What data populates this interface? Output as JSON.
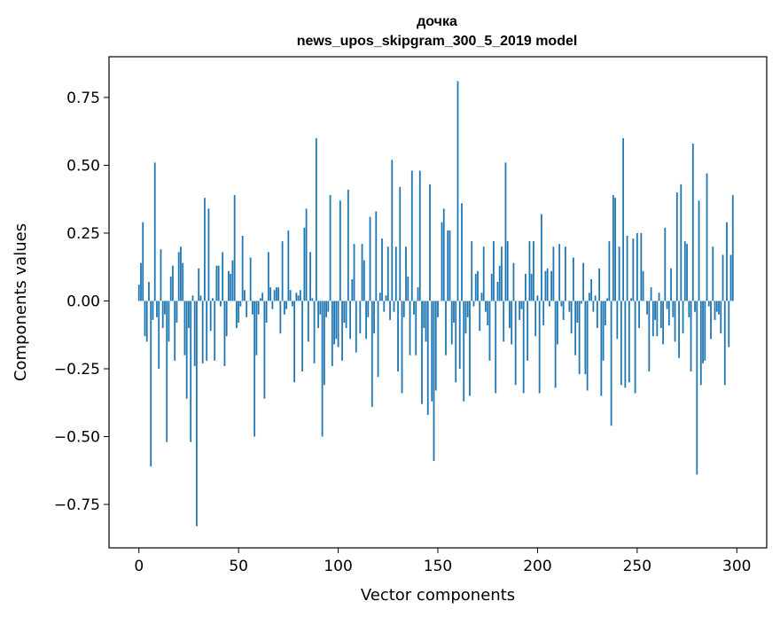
{
  "chart_data": {
    "type": "bar",
    "title": "дочка",
    "subtitle": "news_upos_skipgram_300_5_2019 model",
    "xlabel": "Vector components",
    "ylabel": "Components values",
    "xlim": [
      -15,
      315
    ],
    "ylim": [
      -0.91,
      0.9
    ],
    "xticks": [
      0,
      50,
      100,
      150,
      200,
      250,
      300
    ],
    "yticks": [
      -0.75,
      -0.5,
      -0.25,
      0.0,
      0.25,
      0.5,
      0.75
    ],
    "xtick_labels": [
      "0",
      "50",
      "100",
      "150",
      "200",
      "250",
      "300"
    ],
    "ytick_labels": [
      "−0.75",
      "−0.50",
      "−0.25",
      "0.00",
      "0.25",
      "0.50",
      "0.75"
    ],
    "grid": false,
    "bar_color": "#1f77b4",
    "values": [
      0.06,
      0.14,
      0.29,
      -0.13,
      -0.15,
      0.07,
      -0.61,
      -0.07,
      0.51,
      -0.06,
      -0.25,
      0.19,
      -0.1,
      -0.05,
      -0.52,
      -0.15,
      0.09,
      0.13,
      -0.22,
      -0.08,
      0.18,
      0.2,
      0.14,
      -0.2,
      -0.36,
      -0.1,
      -0.52,
      0.02,
      -0.24,
      -0.83,
      0.12,
      0.02,
      -0.23,
      0.38,
      -0.22,
      0.34,
      -0.11,
      0.01,
      -0.22,
      0.13,
      0.13,
      -0.02,
      0.18,
      -0.24,
      -0.13,
      0.11,
      0.1,
      0.15,
      0.39,
      -0.1,
      -0.08,
      -0.02,
      0.24,
      0.04,
      -0.06,
      0.0,
      0.16,
      -0.05,
      -0.5,
      -0.2,
      -0.05,
      0.01,
      0.03,
      -0.36,
      -0.08,
      0.18,
      0.05,
      -0.03,
      0.04,
      0.05,
      0.05,
      -0.12,
      0.22,
      -0.05,
      -0.03,
      0.26,
      0.04,
      -0.02,
      -0.3,
      0.03,
      0.02,
      0.04,
      -0.26,
      0.27,
      0.34,
      -0.15,
      0.18,
      0.01,
      -0.23,
      0.6,
      -0.1,
      -0.05,
      -0.5,
      -0.31,
      -0.06,
      -0.04,
      0.39,
      -0.24,
      -0.16,
      -0.14,
      -0.17,
      0.37,
      -0.22,
      -0.08,
      -0.1,
      0.41,
      -0.14,
      0.08,
      0.21,
      -0.19,
      0.0,
      -0.12,
      0.21,
      0.15,
      -0.14,
      -0.06,
      0.31,
      -0.39,
      -0.12,
      0.33,
      -0.28,
      0.03,
      0.23,
      -0.04,
      0.02,
      0.2,
      -0.07,
      0.52,
      -0.04,
      0.2,
      -0.26,
      0.42,
      -0.34,
      -0.06,
      0.2,
      0.09,
      -0.2,
      0.48,
      -0.05,
      -0.2,
      0.05,
      0.48,
      -0.38,
      -0.1,
      -0.15,
      -0.42,
      0.43,
      -0.37,
      -0.59,
      -0.33,
      -0.06,
      0.0,
      0.29,
      0.34,
      -0.2,
      0.26,
      0.26,
      -0.16,
      -0.08,
      -0.3,
      0.81,
      -0.25,
      0.36,
      -0.37,
      -0.12,
      -0.06,
      -0.35,
      0.22,
      -0.02,
      0.1,
      0.11,
      -0.11,
      0.03,
      0.2,
      -0.04,
      -0.09,
      -0.22,
      0.1,
      0.22,
      -0.34,
      0.07,
      0.13,
      0.2,
      -0.15,
      0.51,
      0.22,
      -0.1,
      -0.16,
      0.14,
      -0.31,
      0.0,
      -0.07,
      -0.03,
      -0.34,
      0.1,
      -0.22,
      0.22,
      0.1,
      0.22,
      -0.13,
      0.02,
      -0.34,
      0.32,
      -0.09,
      0.11,
      0.12,
      -0.02,
      0.11,
      0.2,
      -0.32,
      -0.16,
      0.21,
      -0.02,
      -0.07,
      0.2,
      0.0,
      -0.04,
      -0.12,
      0.16,
      -0.2,
      -0.08,
      -0.27,
      -0.01,
      0.14,
      -0.27,
      -0.33,
      0.03,
      0.08,
      -0.04,
      0.02,
      -0.1,
      0.12,
      -0.35,
      -0.22,
      -0.09,
      0.01,
      0.22,
      -0.46,
      0.39,
      0.38,
      -0.14,
      0.2,
      -0.31,
      0.6,
      -0.32,
      0.24,
      -0.3,
      0.01,
      0.23,
      -0.34,
      0.25,
      -0.1,
      0.25,
      0.11,
      0.0,
      -0.05,
      -0.26,
      0.05,
      -0.13,
      -0.07,
      -0.13,
      0.03,
      -0.1,
      -0.16,
      0.27,
      -0.03,
      -0.09,
      0.12,
      -0.06,
      -0.15,
      0.4,
      -0.21,
      0.43,
      -0.12,
      0.22,
      0.21,
      -0.06,
      -0.26,
      0.58,
      -0.04,
      -0.64,
      0.37,
      -0.31,
      -0.23,
      -0.22,
      0.47,
      -0.02,
      -0.14,
      0.2,
      -0.07,
      -0.04,
      -0.05,
      -0.12,
      0.17,
      -0.31,
      0.29,
      -0.17,
      0.17,
      0.39
    ]
  }
}
